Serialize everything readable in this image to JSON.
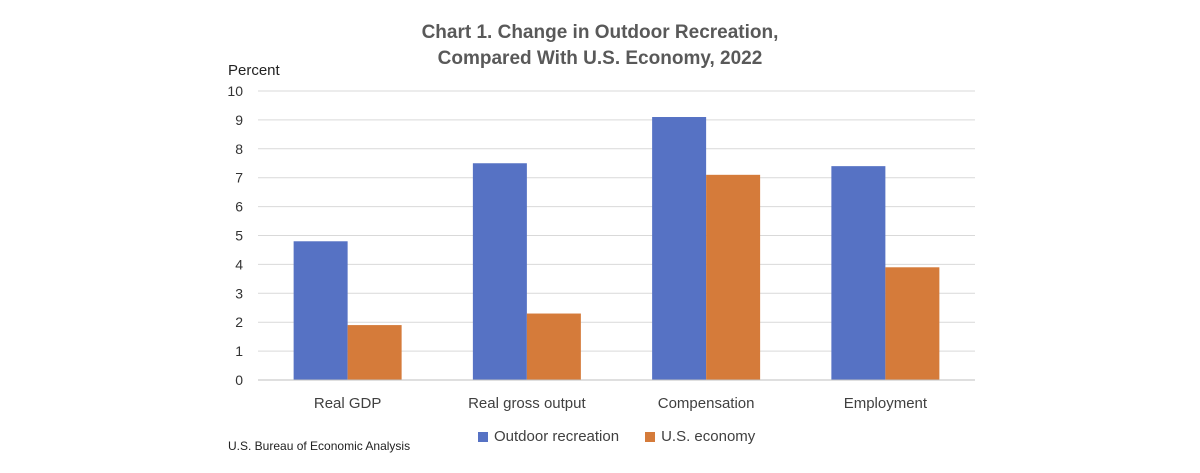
{
  "chart_data": {
    "type": "bar",
    "title": "Chart 1. Change in Outdoor Recreation, Compared With U.S. Economy, 2022",
    "title_lines": [
      "Chart 1. Change in Outdoor Recreation,",
      "Compared With U.S. Economy, 2022"
    ],
    "ylabel": "Percent",
    "xlabel": "",
    "ylim": [
      0,
      10
    ],
    "yticks": [
      0,
      1,
      2,
      3,
      4,
      5,
      6,
      7,
      8,
      9,
      10
    ],
    "grid": true,
    "legend_position": "bottom",
    "categories": [
      "Real GDP",
      "Real gross output",
      "Compensation",
      "Employment"
    ],
    "series": [
      {
        "name": "Outdoor recreation",
        "color": "#5672C4",
        "values": [
          4.8,
          7.5,
          9.1,
          7.4
        ]
      },
      {
        "name": "U.S. economy",
        "color": "#D57B3A",
        "values": [
          1.9,
          2.3,
          7.1,
          3.9
        ]
      }
    ],
    "source": "U.S. Bureau of Economic Analysis"
  }
}
